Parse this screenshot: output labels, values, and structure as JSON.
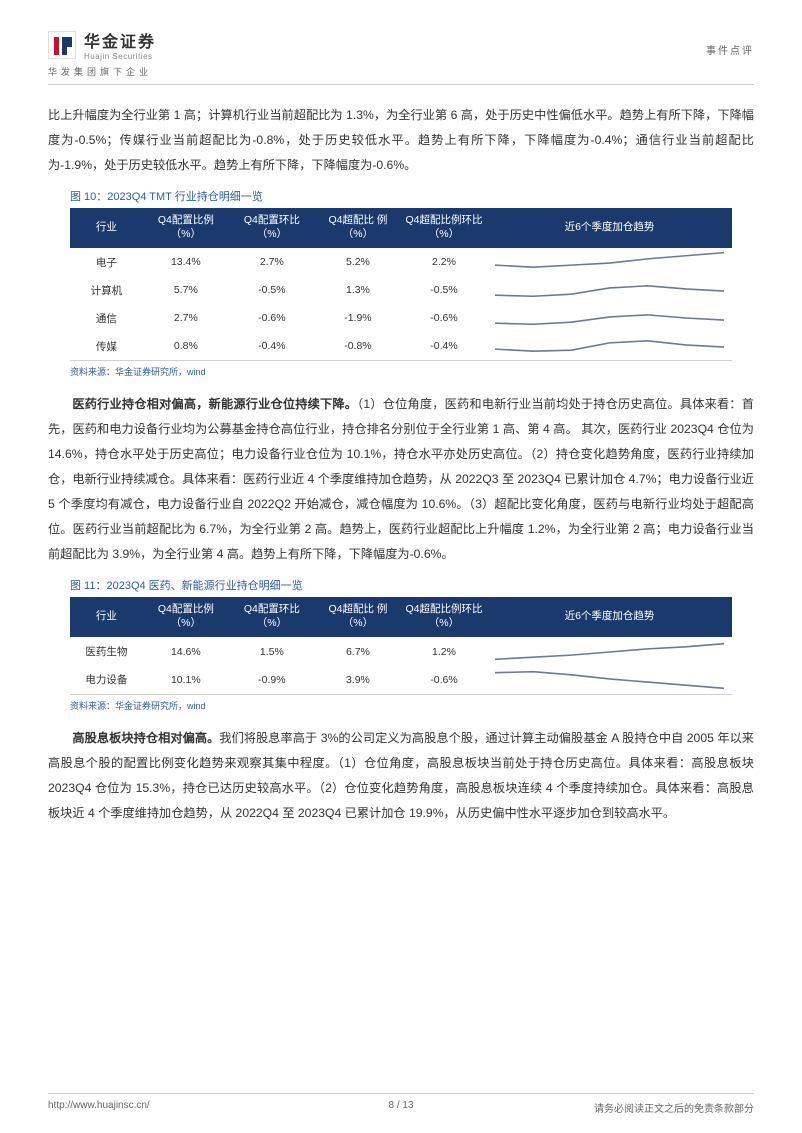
{
  "header": {
    "company_cn": "华金证券",
    "company_en": "Huajin Securities",
    "subsidiary": "华发集团旗下企业",
    "doc_type": "事件点评"
  },
  "para1": "比上升幅度为全行业第 1 高；计算机行业当前超配比为 1.3%，为全行业第 6 高，处于历史中性偏低水平。趋势上有所下降，下降幅度为-0.5%；传媒行业当前超配比为-0.8%，处于历史较低水平。趋势上有所下降，下降幅度为-0.4%；通信行业当前超配比为-1.9%，处于历史较低水平。趋势上有所下降，下降幅度为-0.6%。",
  "fig10": {
    "caption": "图 10：2023Q4 TMT 行业持仓明细一览",
    "headers": {
      "h1": "行业",
      "h2": "Q4配置比例\n（%）",
      "h3": "Q4配置环比\n（%）",
      "h4": "Q4超配比\n例（%）",
      "h5": "Q4超配比例环比\n（%）",
      "h6": "近6个季度加仓趋势"
    },
    "rows": [
      {
        "ind": "电子",
        "a": "13.4%",
        "b": "2.7%",
        "c": "5.2%",
        "d": "2.2%",
        "spark": [
          14,
          16,
          14,
          12,
          8,
          5,
          2
        ]
      },
      {
        "ind": "计算机",
        "a": "5.7%",
        "b": "-0.5%",
        "c": "1.3%",
        "d": "-0.5%",
        "spark": [
          16,
          17,
          15,
          9,
          7,
          10,
          12
        ]
      },
      {
        "ind": "通信",
        "a": "2.7%",
        "b": "-0.6%",
        "c": "-1.9%",
        "d": "-0.6%",
        "spark": [
          16,
          17,
          15,
          10,
          8,
          11,
          13
        ]
      },
      {
        "ind": "传媒",
        "a": "0.8%",
        "b": "-0.4%",
        "c": "-0.8%",
        "d": "-0.4%",
        "spark": [
          14,
          16,
          15,
          8,
          6,
          10,
          12
        ]
      }
    ],
    "source": "资料来源：华金证券研究所，wind"
  },
  "para2_lead": "医药行业持仓相对偏高，新能源行业仓位持续下降。",
  "para2_rest": "（1）仓位角度，医药和电新行业当前均处于持仓历史高位。具体来看：首先，医药和电力设备行业均为公募基金持仓高位行业，持仓排名分别位于全行业第 1 高、第 4 高。 其次，医药行业 2023Q4 仓位为 14.6%，持仓水平处于历史高位；电力设备行业仓位为 10.1%，持仓水平亦处历史高位。（2）持仓变化趋势角度，医药行业持续加仓，电新行业持续减仓。具体来看：医药行业近 4 个季度维持加仓趋势，从 2022Q3 至 2023Q4 已累计加仓 4.7%；电力设备行业近 5 个季度均有减仓，电力设备行业自 2022Q2 开始减仓，减仓幅度为 10.6%。（3）超配比变化角度，医药与电新行业均处于超配高位。医药行业当前超配比为 6.7%，为全行业第 2 高。趋势上，医药行业超配比上升幅度 1.2%，为全行业第 2 高；电力设备行业当前超配比为 3.9%，为全行业第 4 高。趋势上有所下降，下降幅度为-0.6%。",
  "fig11": {
    "caption": "图 11：2023Q4 医药、新能源行业持仓明细一览",
    "headers": {
      "h1": "行业",
      "h2": "Q4配置比例\n（%）",
      "h3": "Q4配置环比\n（%）",
      "h4": "Q4超配比\n例（%）",
      "h5": "Q4超配比例环比\n（%）",
      "h6": "近6个季度加仓趋势"
    },
    "rows": [
      {
        "ind": "医药生物",
        "a": "14.6%",
        "b": "1.5%",
        "c": "6.7%",
        "d": "1.2%",
        "spark": [
          18,
          16,
          14,
          11,
          8,
          6,
          3
        ]
      },
      {
        "ind": "电力设备",
        "a": "10.1%",
        "b": "-0.9%",
        "c": "3.9%",
        "d": "-0.6%",
        "spark": [
          4,
          3,
          6,
          10,
          13,
          16,
          19
        ]
      }
    ],
    "source": "资料来源：华金证券研究所，wind"
  },
  "para3_lead": "高股息板块持仓相对偏高。",
  "para3_rest": "我们将股息率高于 3%的公司定义为高股息个股，通过计算主动偏股基金 A 股持仓中自 2005 年以来高股息个股的配置比例变化趋势来观察其集中程度。（1）仓位角度，高股息板块当前处于持仓历史高位。具体来看：高股息板块 2023Q4 仓位为 15.3%，持仓已达历史较高水平。（2）仓位变化趋势角度，高股息板块连续 4 个季度持续加仓。具体来看：高股息板块近 4 个季度维持加仓趋势，从 2022Q4 至 2023Q4 已累计加仓 19.9%，从历史偏中性水平逐步加仓到较高水平。",
  "footer": {
    "url": "http://www.huajinsc.cn/",
    "page": "8 / 13",
    "disclaimer": "请务必阅读正文之后的免责条款部分"
  },
  "style": {
    "header_bg": "#1a3a6e",
    "header_fg": "#ffffff",
    "link_color": "#2a5caa",
    "spark_stroke": "#6b7a8f"
  }
}
